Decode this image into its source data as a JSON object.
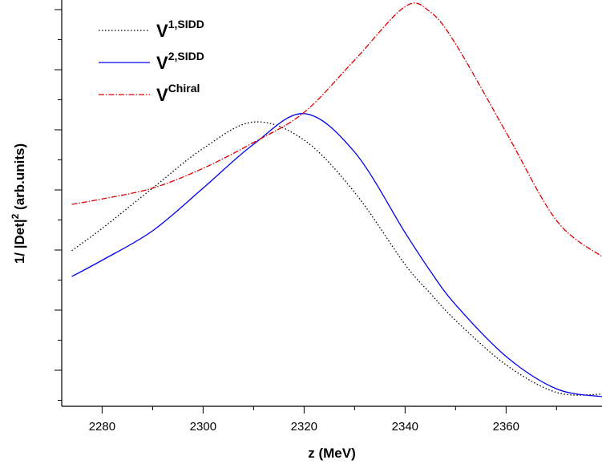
{
  "chart_data": {
    "type": "line",
    "xlabel": "z (MeV)",
    "ylabel": [
      "1/ |Det|",
      "2",
      " (arb.units)"
    ],
    "x": [
      2274,
      2280,
      2290,
      2300,
      2310,
      2320,
      2330,
      2340,
      2345,
      2350,
      2360,
      2370,
      2379
    ],
    "series": [
      {
        "name": "V",
        "superscript": "1,SIDD",
        "color": "#000000",
        "dash": "dotted",
        "values": [
          2.59,
          2.96,
          3.63,
          4.29,
          4.73,
          4.43,
          3.56,
          2.36,
          1.88,
          1.43,
          0.69,
          0.23,
          0.2
        ]
      },
      {
        "name": "V",
        "superscript": "2,SIDD",
        "color": "#0000ee",
        "dash": "solid",
        "values": [
          2.16,
          2.43,
          2.92,
          3.63,
          4.36,
          4.87,
          4.23,
          2.89,
          2.25,
          1.69,
          0.83,
          0.29,
          0.16
        ]
      },
      {
        "name": "V",
        "superscript": "Chiral",
        "color": "#dd0000",
        "dash": "dashdot",
        "values": [
          3.36,
          3.45,
          3.63,
          3.96,
          4.39,
          4.89,
          5.76,
          6.65,
          6.56,
          6.03,
          4.56,
          3.09,
          2.49
        ]
      }
    ],
    "xlim": [
      2272,
      2379
    ],
    "xticks": [
      2280,
      2300,
      2320,
      2340,
      2360
    ],
    "xminorticks": [
      2290,
      2310,
      2330,
      2350,
      2370
    ],
    "ylim": [
      0,
      6.76
    ],
    "yticks": [
      0.1,
      0.6,
      1.1,
      1.6,
      2.1,
      2.6,
      3.1,
      3.6,
      4.1,
      4.6,
      5.1,
      5.6,
      6.1,
      6.6
    ],
    "legend": "upper left"
  }
}
